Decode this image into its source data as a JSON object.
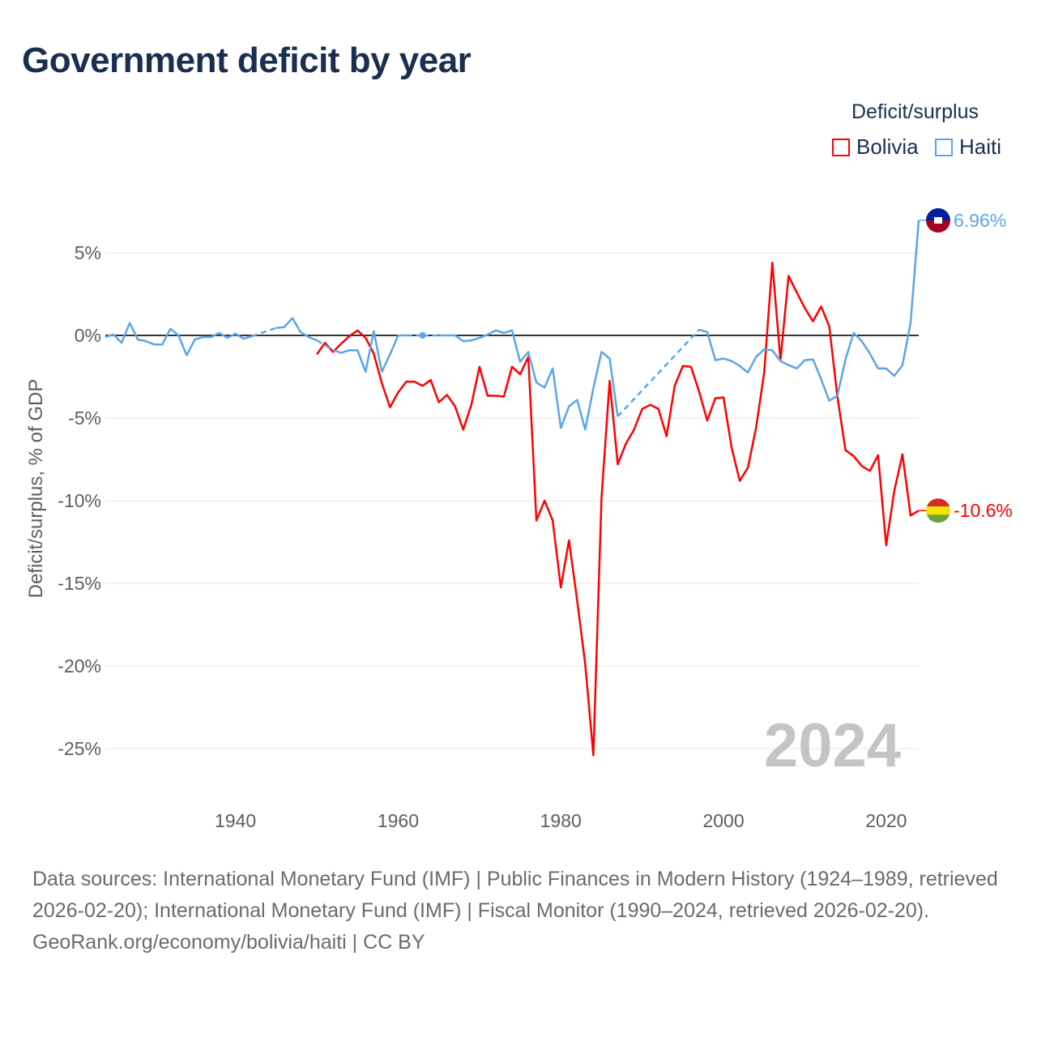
{
  "chart_data": {
    "type": "line",
    "title": "Government deficit by year",
    "ylabel": "Deficit/surplus, % of GDP",
    "xlabel": "",
    "legend_title": "Deficit/surplus",
    "legend_position": "top-right",
    "xlim": [
      1924,
      2024
    ],
    "ylim": [
      -27,
      8
    ],
    "x_ticks": [
      1940,
      1960,
      1980,
      2000,
      2020
    ],
    "x_tick_labels": [
      "1940",
      "1960",
      "1980",
      "2000",
      "2020"
    ],
    "y_ticks": [
      5,
      0,
      -5,
      -10,
      -15,
      -20,
      -25
    ],
    "y_tick_labels": [
      "5%",
      "0%",
      "-5%",
      "-10%",
      "-15%",
      "-20%",
      "-25%"
    ],
    "grid": true,
    "year_watermark": "2024",
    "series": [
      {
        "name": "Bolivia",
        "color": "#ff0000",
        "end_label": "-10.6%",
        "start_year": 1950,
        "values": [
          -1.15,
          -0.45,
          -1.0,
          -0.5,
          -0.05,
          0.3,
          -0.15,
          -1.1,
          -2.9,
          -4.35,
          -3.45,
          -2.8,
          -2.8,
          -3.05,
          -2.7,
          -4.05,
          -3.6,
          -4.3,
          -5.7,
          -4.2,
          -1.9,
          -3.65,
          -3.65,
          -3.7,
          -1.9,
          -2.35,
          -1.3,
          -11.2,
          -10.0,
          -11.2,
          -15.25,
          -12.4,
          -16.0,
          -19.9,
          -25.4,
          -9.85,
          -2.75,
          -7.8,
          -6.55,
          -5.7,
          -4.45,
          -4.2,
          -4.45,
          -6.1,
          -3.05,
          -1.85,
          -1.9,
          -3.4,
          -5.15,
          -3.8,
          -3.75,
          -6.8,
          -8.8,
          -8.0,
          -5.6,
          -2.25,
          4.4,
          -1.5,
          3.6,
          2.6,
          1.65,
          0.85,
          1.75,
          0.55,
          -3.7,
          -6.95,
          -7.3,
          -7.9,
          -8.2,
          -7.25,
          -12.7,
          -9.4,
          -7.2,
          -10.9,
          -10.6
        ]
      },
      {
        "name": "Haiti",
        "color": "#5aa5ea",
        "end_label": "6.96%",
        "start_year": 1924,
        "values": [
          -0.1,
          0.05,
          -0.45,
          0.75,
          -0.25,
          -0.35,
          -0.55,
          -0.55,
          0.4,
          0,
          -1.2,
          -0.25,
          -0.1,
          -0.1,
          0.15,
          -0.15,
          0.1,
          -0.2,
          -0.05,
          null,
          null,
          0.45,
          0.5,
          1.05,
          0.2,
          -0.1,
          -0.3,
          null,
          -0.9,
          -1.05,
          -0.9,
          -0.9,
          -2.2,
          0.25,
          -2.2,
          -1.15,
          0,
          0,
          null,
          0,
          null,
          0,
          0,
          0,
          -0.35,
          -0.3,
          -0.15,
          0.05,
          0.3,
          0.15,
          0.3,
          -1.6,
          -1.0,
          -2.85,
          -3.15,
          -2.0,
          -5.6,
          -4.3,
          -3.9,
          -5.7,
          -3.2,
          -1.0,
          -1.4,
          -4.9,
          null,
          null,
          null,
          null,
          null,
          null,
          null,
          null,
          null,
          0.35,
          0.2,
          -1.5,
          -1.4,
          -1.55,
          -1.85,
          -2.25,
          -1.3,
          -0.85,
          -0.9,
          -1.55,
          -1.8,
          -2.0,
          -1.5,
          -1.45,
          -2.65,
          -3.95,
          -3.65,
          -1.45,
          0.15,
          -0.35,
          -1.1,
          -2.0,
          -2.0,
          -2.45,
          -1.8,
          0.75,
          6.96
        ]
      }
    ]
  },
  "footer": {
    "sources": "Data sources: International Monetary Fund (IMF) | Public Finances in Modern History (1924–1989, retrieved 2026-02-20); International Monetary Fund (IMF) | Fiscal Monitor (1990–2024, retrieved 2026-02-20).",
    "credit": "GeoRank.org/economy/bolivia/haiti | CC BY"
  }
}
